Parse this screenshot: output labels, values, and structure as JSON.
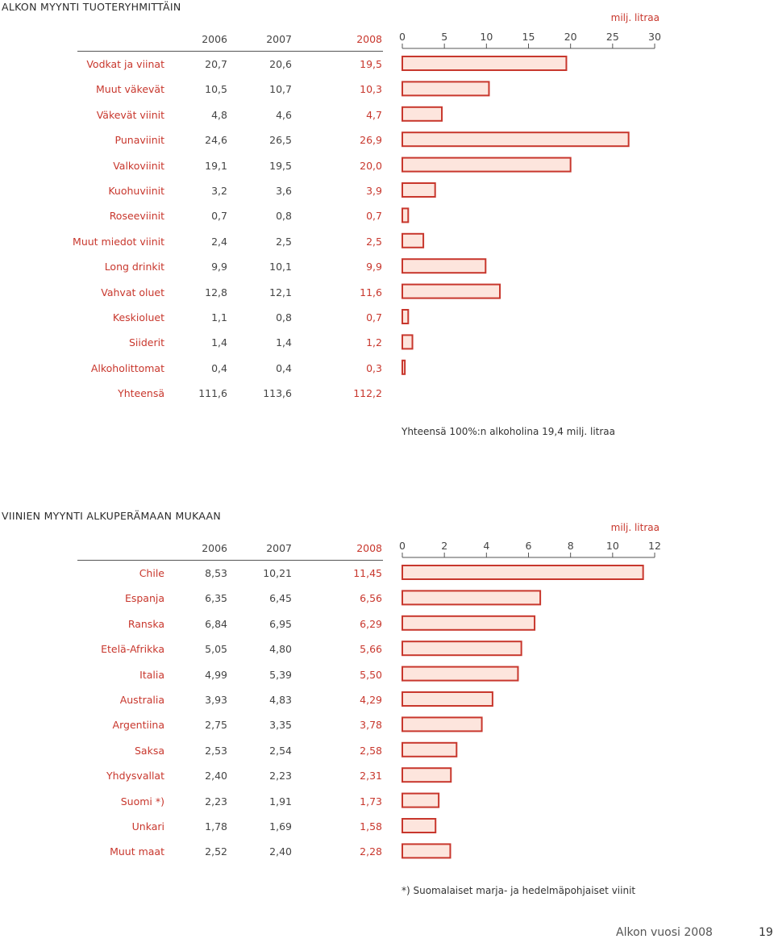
{
  "colors": {
    "accent": "#c8372d",
    "bar_fill": "#fde5dd",
    "bar_stroke": "#c8372d"
  },
  "chart_data": [
    {
      "type": "bar",
      "title": "ALKON MYYNTI TUOTERYHMITTÄIN",
      "unit": "milj. litraa",
      "years": [
        "2006",
        "2007",
        "2008"
      ],
      "xticks": [
        "0",
        "5",
        "10",
        "15",
        "20",
        "25",
        "30"
      ],
      "xlim": [
        0,
        30
      ],
      "orientation": "horizontal",
      "bar_series": "2008",
      "rows": [
        {
          "label": "Vodkat ja viinat",
          "v2006": "20,7",
          "v2007": "20,6",
          "v2008": "19,5",
          "value": 19.5
        },
        {
          "label": "Muut väkevät",
          "v2006": "10,5",
          "v2007": "10,7",
          "v2008": "10,3",
          "value": 10.3
        },
        {
          "label": "Väkevät viinit",
          "v2006": "4,8",
          "v2007": "4,6",
          "v2008": "4,7",
          "value": 4.7
        },
        {
          "label": "Punaviinit",
          "v2006": "24,6",
          "v2007": "26,5",
          "v2008": "26,9",
          "value": 26.9
        },
        {
          "label": "Valkoviinit",
          "v2006": "19,1",
          "v2007": "19,5",
          "v2008": "20,0",
          "value": 20.0
        },
        {
          "label": "Kuohuviinit",
          "v2006": "3,2",
          "v2007": "3,6",
          "v2008": "3,9",
          "value": 3.9
        },
        {
          "label": "Roseeviinit",
          "v2006": "0,7",
          "v2007": "0,8",
          "v2008": "0,7",
          "value": 0.7
        },
        {
          "label": "Muut miedot viinit",
          "v2006": "2,4",
          "v2007": "2,5",
          "v2008": "2,5",
          "value": 2.5
        },
        {
          "label": "Long drinkit",
          "v2006": "9,9",
          "v2007": "10,1",
          "v2008": "9,9",
          "value": 9.9
        },
        {
          "label": "Vahvat oluet",
          "v2006": "12,8",
          "v2007": "12,1",
          "v2008": "11,6",
          "value": 11.6
        },
        {
          "label": "Keskioluet",
          "v2006": "1,1",
          "v2007": "0,8",
          "v2008": "0,7",
          "value": 0.7
        },
        {
          "label": "Siiderit",
          "v2006": "1,4",
          "v2007": "1,4",
          "v2008": "1,2",
          "value": 1.2
        },
        {
          "label": "Alkoholittomat",
          "v2006": "0,4",
          "v2007": "0,4",
          "v2008": "0,3",
          "value": 0.3
        }
      ],
      "total": {
        "label": "Yhteensä",
        "v2006": "111,6",
        "v2007": "113,6",
        "v2008": "112,2"
      },
      "note": "Yhteensä 100%:n alkoholina 19,4 milj. litraa",
      "grid": false
    },
    {
      "type": "bar",
      "title": "VIINIEN MYYNTI ALKUPERÄMAAN MUKAAN",
      "unit": "milj. litraa",
      "years": [
        "2006",
        "2007",
        "2008"
      ],
      "xticks": [
        "0",
        "2",
        "4",
        "6",
        "8",
        "10",
        "12"
      ],
      "xlim": [
        0,
        12
      ],
      "orientation": "horizontal",
      "bar_series": "2008",
      "rows": [
        {
          "label": "Chile",
          "v2006": "8,53",
          "v2007": "10,21",
          "v2008": "11,45",
          "value": 11.45
        },
        {
          "label": "Espanja",
          "v2006": "6,35",
          "v2007": "6,45",
          "v2008": "6,56",
          "value": 6.56
        },
        {
          "label": "Ranska",
          "v2006": "6,84",
          "v2007": "6,95",
          "v2008": "6,29",
          "value": 6.29
        },
        {
          "label": "Etelä-Afrikka",
          "v2006": "5,05",
          "v2007": "4,80",
          "v2008": "5,66",
          "value": 5.66
        },
        {
          "label": "Italia",
          "v2006": "4,99",
          "v2007": "5,39",
          "v2008": "5,50",
          "value": 5.5
        },
        {
          "label": "Australia",
          "v2006": "3,93",
          "v2007": "4,83",
          "v2008": "4,29",
          "value": 4.29
        },
        {
          "label": "Argentiina",
          "v2006": "2,75",
          "v2007": "3,35",
          "v2008": "3,78",
          "value": 3.78
        },
        {
          "label": "Saksa",
          "v2006": "2,53",
          "v2007": "2,54",
          "v2008": "2,58",
          "value": 2.58
        },
        {
          "label": "Yhdysvallat",
          "v2006": "2,40",
          "v2007": "2,23",
          "v2008": "2,31",
          "value": 2.31
        },
        {
          "label": "Suomi *)",
          "v2006": "2,23",
          "v2007": "1,91",
          "v2008": "1,73",
          "value": 1.73
        },
        {
          "label": "Unkari",
          "v2006": "1,78",
          "v2007": "1,69",
          "v2008": "1,58",
          "value": 1.58
        },
        {
          "label": "Muut maat",
          "v2006": "2,52",
          "v2007": "2,40",
          "v2008": "2,28",
          "value": 2.28
        }
      ],
      "note": "*) Suomalaiset marja- ja hedelmäpohjaiset viinit",
      "grid": false
    }
  ],
  "footer": {
    "title": "Alkon vuosi 2008",
    "page": "19"
  }
}
